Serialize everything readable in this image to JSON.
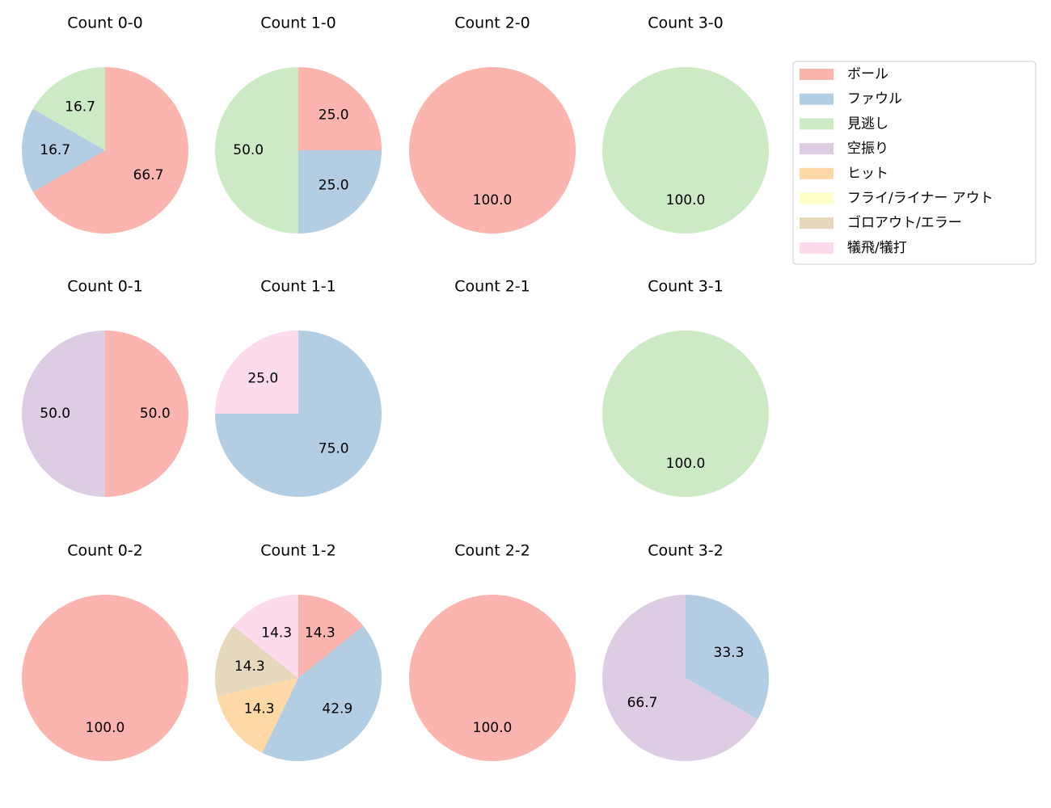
{
  "chart_data": [
    {
      "type": "pie",
      "title": "Count 0-0",
      "values": [
        66.7,
        16.7,
        16.7,
        0,
        0,
        0,
        0,
        0
      ],
      "value_labels": [
        "66.7",
        "16.7",
        "16.7",
        null,
        null,
        null,
        null,
        null
      ]
    },
    {
      "type": "pie",
      "title": "Count 1-0",
      "values": [
        25,
        25,
        50,
        0,
        0,
        0,
        0,
        0
      ],
      "value_labels": [
        "25.0",
        "25.0",
        "50.0",
        null,
        null,
        null,
        null,
        null
      ]
    },
    {
      "type": "pie",
      "title": "Count 2-0",
      "values": [
        100,
        0,
        0,
        0,
        0,
        0,
        0,
        0
      ],
      "value_labels": [
        "100.0",
        null,
        null,
        null,
        null,
        null,
        null,
        null
      ]
    },
    {
      "type": "pie",
      "title": "Count 3-0",
      "values": [
        0,
        0,
        100,
        0,
        0,
        0,
        0,
        0
      ],
      "value_labels": [
        null,
        null,
        "100.0",
        null,
        null,
        null,
        null,
        null
      ]
    },
    {
      "type": "pie",
      "title": "Count 0-1",
      "values": [
        50,
        0,
        0,
        50,
        0,
        0,
        0,
        0
      ],
      "value_labels": [
        "50.0",
        null,
        null,
        "50.0",
        null,
        null,
        null,
        null
      ]
    },
    {
      "type": "pie",
      "title": "Count 1-1",
      "values": [
        0,
        75,
        0,
        0,
        0,
        0,
        0,
        25
      ],
      "value_labels": [
        null,
        "75.0",
        null,
        null,
        null,
        null,
        null,
        "25.0"
      ]
    },
    {
      "type": "pie",
      "title": "Count 2-1",
      "values": [],
      "value_labels": []
    },
    {
      "type": "pie",
      "title": "Count 3-1",
      "values": [
        0,
        0,
        100,
        0,
        0,
        0,
        0,
        0
      ],
      "value_labels": [
        null,
        null,
        "100.0",
        null,
        null,
        null,
        null,
        null
      ]
    },
    {
      "type": "pie",
      "title": "Count 0-2",
      "values": [
        100,
        0,
        0,
        0,
        0,
        0,
        0,
        0
      ],
      "value_labels": [
        "100.0",
        null,
        null,
        null,
        null,
        null,
        null,
        null
      ]
    },
    {
      "type": "pie",
      "title": "Count 1-2",
      "values": [
        14.3,
        42.9,
        0,
        0,
        14.3,
        0,
        14.3,
        14.3
      ],
      "value_labels": [
        "14.3",
        "42.9",
        null,
        null,
        "14.3",
        null,
        "14.3",
        "14.3"
      ]
    },
    {
      "type": "pie",
      "title": "Count 2-2",
      "values": [
        100,
        0,
        0,
        0,
        0,
        0,
        0,
        0
      ],
      "value_labels": [
        "100.0",
        null,
        null,
        null,
        null,
        null,
        null,
        null
      ]
    },
    {
      "type": "pie",
      "title": "Count 3-2",
      "values": [
        0,
        33.3,
        0,
        66.7,
        0,
        0,
        0,
        0
      ],
      "value_labels": [
        null,
        "33.3",
        null,
        "66.7",
        null,
        null,
        null,
        null
      ]
    }
  ],
  "legend": {
    "position": "upper right",
    "entries": [
      {
        "name": "ボール",
        "color": "#fbb4ae"
      },
      {
        "name": "ファウル",
        "color": "#b3cde3"
      },
      {
        "name": "見逃し",
        "color": "#ccebc5"
      },
      {
        "name": "空振り",
        "color": "#decbe4"
      },
      {
        "name": "ヒット",
        "color": "#fed9a6"
      },
      {
        "name": "フライ/ライナー アウト",
        "color": "#ffffcc"
      },
      {
        "name": "ゴロアウト/エラー",
        "color": "#e5d8bd"
      },
      {
        "name": "犠飛/犠打",
        "color": "#fddaec"
      }
    ]
  }
}
